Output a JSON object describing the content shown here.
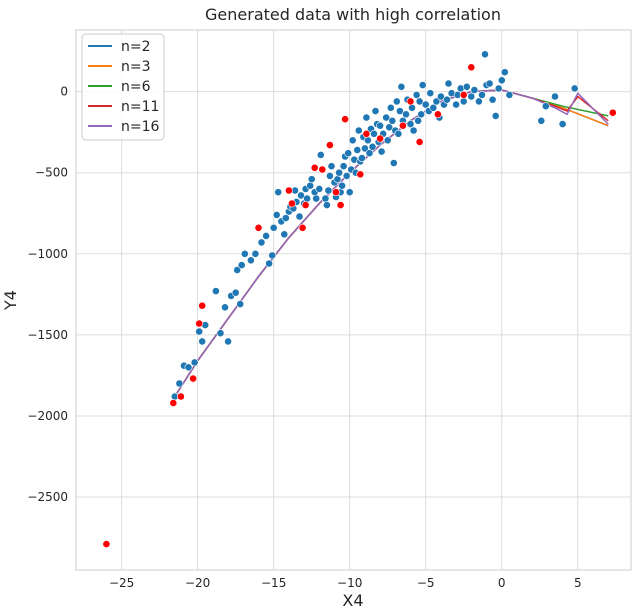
{
  "chart_data": {
    "type": "scatter",
    "title": "Generated data with high correlation",
    "xlabel": "X4",
    "ylabel": "Y4",
    "xlim": [
      -28,
      8.5
    ],
    "ylim": [
      -2950,
      380
    ],
    "xticks": [
      -25,
      -20,
      -15,
      -10,
      -5,
      0,
      5
    ],
    "yticks": [
      -2500,
      -2000,
      -1500,
      -1000,
      -500,
      0
    ],
    "grid": true,
    "legend_position": "top-left",
    "scatter_series": [
      {
        "name": "",
        "color": "#1f77b4",
        "points": [
          [
            -21.5,
            -1880
          ],
          [
            -21.2,
            -1800
          ],
          [
            -20.9,
            -1690
          ],
          [
            -20.6,
            -1700
          ],
          [
            -20.2,
            -1670
          ],
          [
            -19.9,
            -1480
          ],
          [
            -19.7,
            -1540
          ],
          [
            -19.5,
            -1440
          ],
          [
            -18.8,
            -1230
          ],
          [
            -18.5,
            -1490
          ],
          [
            -18.2,
            -1330
          ],
          [
            -18.0,
            -1540
          ],
          [
            -17.8,
            -1260
          ],
          [
            -17.5,
            -1240
          ],
          [
            -17.4,
            -1100
          ],
          [
            -17.2,
            -1310
          ],
          [
            -17.1,
            -1070
          ],
          [
            -16.9,
            -1000
          ],
          [
            -16.5,
            -1040
          ],
          [
            -16.2,
            -1000
          ],
          [
            -15.8,
            -930
          ],
          [
            -15.5,
            -890
          ],
          [
            -15.3,
            -1060
          ],
          [
            -15.1,
            -1010
          ],
          [
            -15.0,
            -840
          ],
          [
            -14.8,
            -760
          ],
          [
            -14.7,
            -620
          ],
          [
            -14.5,
            -800
          ],
          [
            -14.3,
            -880
          ],
          [
            -14.2,
            -780
          ],
          [
            -14.0,
            -740
          ],
          [
            -13.9,
            -710
          ],
          [
            -13.7,
            -720
          ],
          [
            -13.6,
            -610
          ],
          [
            -13.5,
            -680
          ],
          [
            -13.3,
            -770
          ],
          [
            -13.2,
            -640
          ],
          [
            -13.0,
            -690
          ],
          [
            -12.9,
            -600
          ],
          [
            -12.8,
            -660
          ],
          [
            -12.6,
            -580
          ],
          [
            -12.5,
            -540
          ],
          [
            -12.3,
            -620
          ],
          [
            -12.2,
            -660
          ],
          [
            -12.0,
            -600
          ],
          [
            -11.9,
            -390
          ],
          [
            -11.8,
            -480
          ],
          [
            -11.6,
            -660
          ],
          [
            -11.5,
            -700
          ],
          [
            -11.4,
            -610
          ],
          [
            -11.3,
            -520
          ],
          [
            -11.2,
            -460
          ],
          [
            -11.0,
            -560
          ],
          [
            -10.9,
            -650
          ],
          [
            -10.8,
            -540
          ],
          [
            -10.7,
            -500
          ],
          [
            -10.6,
            -620
          ],
          [
            -10.5,
            -580
          ],
          [
            -10.4,
            -460
          ],
          [
            -10.3,
            -400
          ],
          [
            -10.2,
            -520
          ],
          [
            -10.1,
            -380
          ],
          [
            -10.0,
            -620
          ],
          [
            -9.9,
            -480
          ],
          [
            -9.8,
            -300
          ],
          [
            -9.7,
            -420
          ],
          [
            -9.6,
            -500
          ],
          [
            -9.5,
            -360
          ],
          [
            -9.4,
            -240
          ],
          [
            -9.3,
            -430
          ],
          [
            -9.2,
            -410
          ],
          [
            -9.1,
            -280
          ],
          [
            -9.0,
            -350
          ],
          [
            -8.9,
            -160
          ],
          [
            -8.8,
            -300
          ],
          [
            -8.7,
            -380
          ],
          [
            -8.6,
            -230
          ],
          [
            -8.5,
            -340
          ],
          [
            -8.4,
            -260
          ],
          [
            -8.3,
            -120
          ],
          [
            -8.2,
            -200
          ],
          [
            -8.1,
            -310
          ],
          [
            -8.0,
            -210
          ],
          [
            -7.9,
            -370
          ],
          [
            -7.8,
            -260
          ],
          [
            -7.6,
            -160
          ],
          [
            -7.5,
            -300
          ],
          [
            -7.4,
            -220
          ],
          [
            -7.3,
            -100
          ],
          [
            -7.2,
            -180
          ],
          [
            -7.1,
            -440
          ],
          [
            -7.0,
            -240
          ],
          [
            -6.9,
            -60
          ],
          [
            -6.8,
            -260
          ],
          [
            -6.7,
            -120
          ],
          [
            -6.6,
            30
          ],
          [
            -6.5,
            -180
          ],
          [
            -6.3,
            -140
          ],
          [
            -6.2,
            -50
          ],
          [
            -6.0,
            -200
          ],
          [
            -5.9,
            -100
          ],
          [
            -5.8,
            -240
          ],
          [
            -5.6,
            -20
          ],
          [
            -5.5,
            -180
          ],
          [
            -5.4,
            -60
          ],
          [
            -5.3,
            -140
          ],
          [
            -5.2,
            40
          ],
          [
            -5.0,
            -80
          ],
          [
            -4.8,
            -120
          ],
          [
            -4.7,
            -10
          ],
          [
            -4.5,
            -100
          ],
          [
            -4.3,
            -60
          ],
          [
            -4.1,
            -160
          ],
          [
            -4.0,
            -30
          ],
          [
            -3.8,
            -80
          ],
          [
            -3.6,
            -50
          ],
          [
            -3.5,
            50
          ],
          [
            -3.3,
            -10
          ],
          [
            -3.0,
            -80
          ],
          [
            -2.9,
            -20
          ],
          [
            -2.7,
            20
          ],
          [
            -2.5,
            -60
          ],
          [
            -2.3,
            30
          ],
          [
            -2.0,
            -30
          ],
          [
            -1.8,
            10
          ],
          [
            -1.5,
            -60
          ],
          [
            -1.3,
            -20
          ],
          [
            -1.1,
            230
          ],
          [
            -1.0,
            40
          ],
          [
            -0.8,
            50
          ],
          [
            -0.6,
            -50
          ],
          [
            -0.4,
            -150
          ],
          [
            -0.2,
            20
          ],
          [
            0.0,
            70
          ],
          [
            0.2,
            120
          ],
          [
            0.5,
            -20
          ],
          [
            2.6,
            -180
          ],
          [
            2.9,
            -90
          ],
          [
            3.5,
            -30
          ],
          [
            4.0,
            -200
          ],
          [
            4.8,
            20
          ]
        ]
      },
      {
        "name": "",
        "color": "#ff0000",
        "points": [
          [
            -26.0,
            -2790
          ],
          [
            -21.6,
            -1920
          ],
          [
            -21.1,
            -1880
          ],
          [
            -20.3,
            -1770
          ],
          [
            -19.9,
            -1430
          ],
          [
            -19.7,
            -1320
          ],
          [
            -16.0,
            -840
          ],
          [
            -14.0,
            -610
          ],
          [
            -13.8,
            -690
          ],
          [
            -13.1,
            -840
          ],
          [
            -12.9,
            -700
          ],
          [
            -12.3,
            -470
          ],
          [
            -11.8,
            -480
          ],
          [
            -11.3,
            -330
          ],
          [
            -10.9,
            -620
          ],
          [
            -10.6,
            -700
          ],
          [
            -10.3,
            -170
          ],
          [
            -9.3,
            -510
          ],
          [
            -8.9,
            -260
          ],
          [
            -8.0,
            -290
          ],
          [
            -6.5,
            -210
          ],
          [
            -6.0,
            -60
          ],
          [
            -5.4,
            -310
          ],
          [
            -4.2,
            -140
          ],
          [
            -2.5,
            -20
          ],
          [
            -2.0,
            150
          ],
          [
            7.3,
            -130
          ]
        ]
      }
    ],
    "series": [
      {
        "name": "n=2",
        "color": "#1f77b4",
        "x": [
          -21.6,
          -20,
          -18,
          -16,
          -14,
          -12,
          -10,
          -8,
          -6,
          -4,
          -2,
          0,
          2,
          4,
          7
        ],
        "y": [
          -1895,
          -1660,
          -1400,
          -1140,
          -900,
          -690,
          -500,
          -330,
          -180,
          -60,
          0,
          10,
          -40,
          -100,
          -210
        ]
      },
      {
        "name": "n=3",
        "color": "#ff7f0e",
        "x": [
          -21.6,
          -20,
          -18,
          -16,
          -14,
          -12,
          -10,
          -8,
          -6,
          -4,
          -2,
          0,
          2,
          4,
          7
        ],
        "y": [
          -1895,
          -1660,
          -1400,
          -1140,
          -900,
          -690,
          -500,
          -330,
          -180,
          -60,
          0,
          10,
          -40,
          -100,
          -210
        ]
      },
      {
        "name": "n=6",
        "color": "#2ca02c",
        "x": [
          -21.6,
          -20,
          -18,
          -16,
          -14,
          -12,
          -10,
          -8,
          -6,
          -4,
          -2,
          0,
          2,
          4,
          7
        ],
        "y": [
          -1895,
          -1660,
          -1400,
          -1140,
          -900,
          -690,
          -500,
          -330,
          -180,
          -60,
          0,
          10,
          -40,
          -90,
          -150
        ]
      },
      {
        "name": "n=11",
        "color": "#d62728",
        "x": [
          -21.6,
          -20,
          -18,
          -16,
          -14,
          -12,
          -10,
          -8,
          -6,
          -4,
          -2,
          0,
          2,
          3.5,
          4.3,
          5,
          7
        ],
        "y": [
          -1895,
          -1660,
          -1400,
          -1140,
          -900,
          -690,
          -500,
          -330,
          -180,
          -60,
          0,
          10,
          -40,
          -90,
          -120,
          -30,
          -180
        ]
      },
      {
        "name": "n=16",
        "color": "#9467bd",
        "x": [
          -21.6,
          -20,
          -18,
          -16,
          -14,
          -12,
          -10,
          -8,
          -6,
          -4,
          -2,
          0,
          2,
          3.5,
          4.3,
          5,
          7
        ],
        "y": [
          -1895,
          -1660,
          -1400,
          -1140,
          -900,
          -690,
          -500,
          -330,
          -180,
          -60,
          0,
          10,
          -40,
          -100,
          -140,
          -10,
          -200
        ]
      }
    ]
  }
}
